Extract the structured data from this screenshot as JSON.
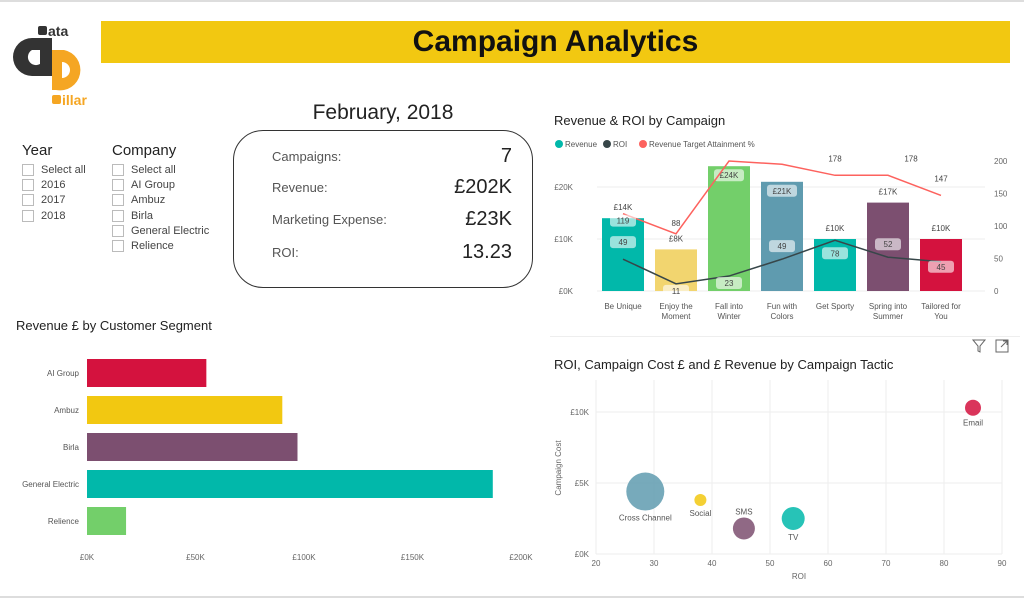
{
  "header": {
    "title": "Campaign Analytics",
    "banner_color": "#F2C811"
  },
  "logo": {
    "text_top": "ata",
    "text_bottom": "illar",
    "colors": [
      "#333333",
      "#F5A623"
    ]
  },
  "period": "February, 2018",
  "slicers": {
    "year": {
      "title": "Year",
      "items": [
        "Select all",
        "2016",
        "2017",
        "2018"
      ]
    },
    "company": {
      "title": "Company",
      "items": [
        "Select all",
        "AI Group",
        "Ambuz",
        "Birla",
        "General Electric",
        "Relience"
      ]
    }
  },
  "kpis": [
    {
      "label": "Campaigns:",
      "value": "7"
    },
    {
      "label": "Revenue:",
      "value": "£202K"
    },
    {
      "label": "Marketing  Expense:",
      "value": "£23K"
    },
    {
      "label": "ROI:",
      "value": "13.23"
    }
  ],
  "chart_data": [
    {
      "type": "bar",
      "title": "Revenue & ROI by Campaign",
      "legend": [
        "Revenue",
        "ROI",
        "Revenue Target Attainment %"
      ],
      "legend_colors": [
        "#01B8AA",
        "#374649",
        "#FD625E"
      ],
      "categories": [
        "Be Unique",
        "Enjoy the Moment",
        "Fall into Winter",
        "Fun with Colors",
        "Get Sporty",
        "Spring into Summer",
        "Tailored for You"
      ],
      "category_lines": [
        [
          "Be Unique"
        ],
        [
          "Enjoy the",
          "Moment"
        ],
        [
          "Fall into",
          "Winter"
        ],
        [
          "Fun with",
          "Colors"
        ],
        [
          "Get Sporty"
        ],
        [
          "Spring into",
          "Summer"
        ],
        [
          "Tailored for",
          "You"
        ]
      ],
      "revenue": [
        14,
        8,
        24,
        21,
        10,
        17,
        10
      ],
      "revenue_labels": [
        "£14K",
        "£8K",
        "£24K",
        "£21K",
        "£10K",
        "£17K",
        "£10K"
      ],
      "bar_colors": [
        "#01B8AA",
        "#F2D56F",
        "#73CF6A",
        "#5F9BAF",
        "#01B8AA",
        "#7C4F70",
        "#D4123E"
      ],
      "roi": [
        49,
        11,
        23,
        49,
        78,
        52,
        45
      ],
      "target_attainment": [
        119,
        88,
        200,
        195,
        178,
        178,
        147
      ],
      "target_labels": [
        "119",
        "88",
        "",
        "",
        "178",
        "178",
        "147"
      ],
      "y_left": {
        "ticks": [
          "£0K",
          "£10K",
          "£20K"
        ],
        "range": [
          0,
          25
        ]
      },
      "y_right": {
        "ticks": [
          "0",
          "50",
          "100",
          "150",
          "200"
        ],
        "range": [
          0,
          200
        ]
      }
    },
    {
      "type": "bar",
      "orientation": "horizontal",
      "title": "Revenue £ by Customer Segment",
      "categories": [
        "AI Group",
        "Ambuz",
        "Birla",
        "General Electric",
        "Relience"
      ],
      "values": [
        55,
        90,
        97,
        187,
        18
      ],
      "colors": [
        "#D4123E",
        "#F2C811",
        "#7C4F70",
        "#01B8AA",
        "#73CF6A"
      ],
      "x_ticks": [
        "£0K",
        "£50K",
        "£100K",
        "£150K",
        "£200K"
      ],
      "xlim": [
        0,
        200
      ]
    },
    {
      "type": "scatter",
      "title": "ROI, Campaign Cost £ and £ Revenue by Campaign Tactic",
      "xlabel": "ROI",
      "ylabel": "Campaign Cost",
      "x_ticks": [
        "20",
        "30",
        "40",
        "50",
        "60",
        "70",
        "80",
        "90"
      ],
      "xlim": [
        20,
        90
      ],
      "y_ticks": [
        "£0K",
        "£5K",
        "£10K"
      ],
      "ylim": [
        0,
        12
      ],
      "points": [
        {
          "label": "Email",
          "x": 85,
          "y": 10.3,
          "size": 14,
          "color": "#D4123E"
        },
        {
          "label": "Cross Channel",
          "x": 28.5,
          "y": 4.4,
          "size": 36,
          "color": "#5F9BAF"
        },
        {
          "label": "Social",
          "x": 38,
          "y": 3.8,
          "size": 10,
          "color": "#F2C811"
        },
        {
          "label": "SMS",
          "x": 45.5,
          "y": 1.8,
          "size": 20,
          "color": "#7C4F70"
        },
        {
          "label": "TV",
          "x": 54,
          "y": 2.5,
          "size": 21,
          "color": "#01B8AA"
        }
      ]
    }
  ]
}
